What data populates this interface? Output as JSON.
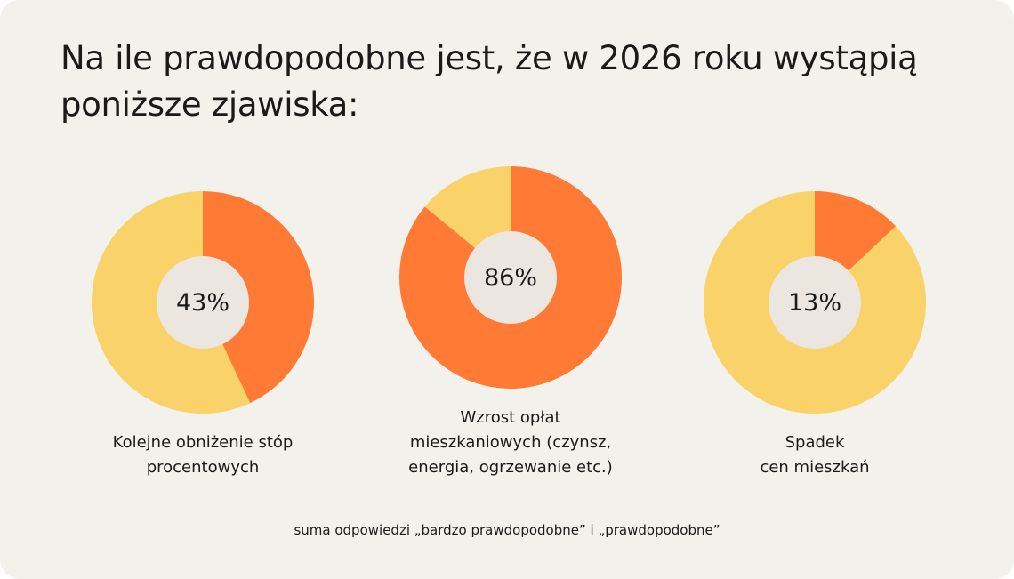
{
  "title_lines": [
    "Na ile prawdopodobne jest, że w 2026 roku wystąpią",
    "poniższe zjawiska:"
  ],
  "colors": {
    "background": "#f3f1ec",
    "likely": "#ff7a35",
    "rest": "#f9d26a",
    "center": "#ebe6df"
  },
  "chart_data": [
    {
      "type": "pie",
      "values": [
        43,
        57
      ],
      "center_label": "43%",
      "label_lines": [
        "Kolejne obniżenie stóp",
        "procentowych"
      ]
    },
    {
      "type": "pie",
      "values": [
        86,
        14
      ],
      "center_label": "86%",
      "label_lines": [
        "Wzrost opłat",
        "mieszkaniowych (czynsz,",
        "energia, ogrzewanie etc.)"
      ]
    },
    {
      "type": "pie",
      "values": [
        13,
        87
      ],
      "center_label": "13%",
      "label_lines": [
        "Spadek",
        "cen mieszkań"
      ]
    }
  ],
  "footnote": "suma odpowiedzi „bardzo prawdopodobne” i „prawdopodobne”"
}
